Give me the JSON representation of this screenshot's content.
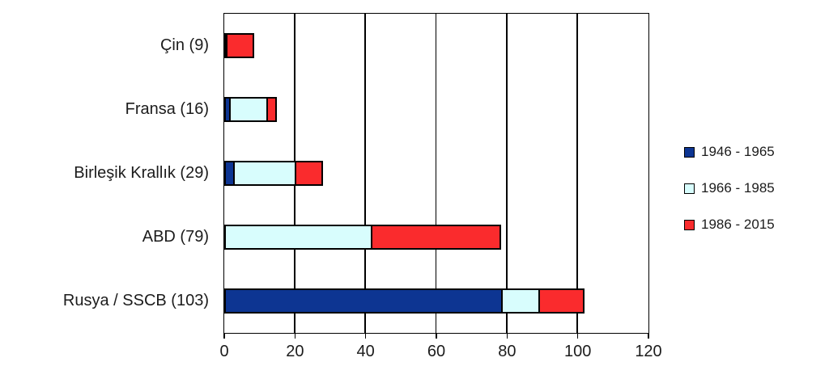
{
  "chart_data": {
    "type": "bar",
    "orientation": "horizontal-stacked",
    "title": "",
    "xlabel": "",
    "ylabel": "",
    "categories": [
      "Çin (9)",
      "Fransa (16)",
      "Birleşik Krallık (29)",
      "ABD (79)",
      "Rusya / SSCB (103)"
    ],
    "series": [
      {
        "name": "1946 - 1965",
        "color": "#0d3592",
        "values": [
          0,
          2,
          3,
          0,
          79
        ]
      },
      {
        "name": "1966 - 1985",
        "color": "#d8fdfd",
        "values": [
          1,
          11,
          18,
          42,
          11
        ]
      },
      {
        "name": "1986 - 2015",
        "color": "#fa2b2d",
        "values": [
          8,
          3,
          8,
          37,
          13
        ]
      }
    ],
    "totals": [
      9,
      16,
      29,
      79,
      103
    ],
    "xlim": [
      0,
      120
    ],
    "xticks": [
      0,
      20,
      40,
      60,
      80,
      100,
      120
    ],
    "grid": "vertical",
    "legend_position": "right",
    "bar_border_color": "#000000",
    "axis_color": "#000000",
    "background_color": "#ffffff",
    "text_color": "#1c1c1c"
  }
}
